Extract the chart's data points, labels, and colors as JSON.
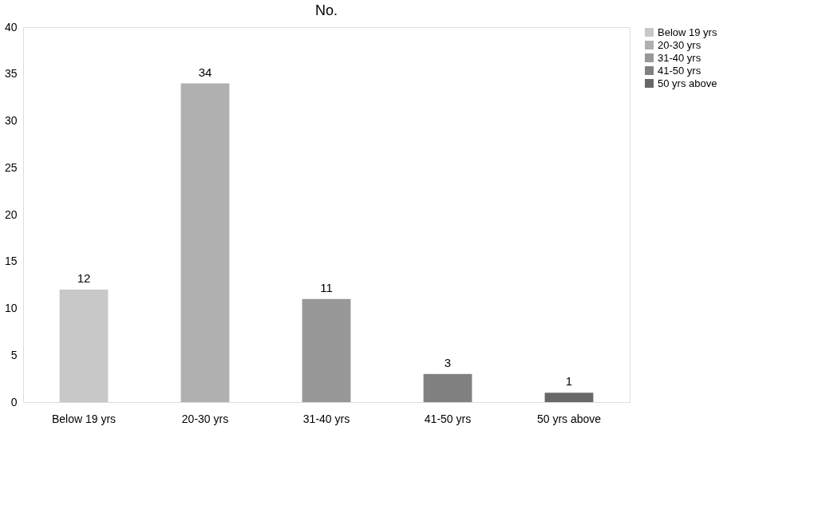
{
  "chart_data": {
    "type": "bar",
    "title": "No.",
    "categories": [
      "Below 19 yrs",
      "20-30 yrs",
      "31-40 yrs",
      "41-50 yrs",
      "50 yrs above"
    ],
    "series": [
      {
        "name": "Below 19 yrs",
        "color": "#c8c8c8",
        "values": [
          12,
          null,
          null,
          null,
          null
        ]
      },
      {
        "name": "20-30 yrs",
        "color": "#b0b0b0",
        "values": [
          null,
          34,
          null,
          null,
          null
        ]
      },
      {
        "name": "31-40 yrs",
        "color": "#989898",
        "values": [
          null,
          null,
          11,
          null,
          null
        ]
      },
      {
        "name": "41-50 yrs",
        "color": "#808080",
        "values": [
          null,
          null,
          null,
          3,
          null
        ]
      },
      {
        "name": "50 yrs above",
        "color": "#686868",
        "values": [
          null,
          null,
          null,
          null,
          1
        ]
      }
    ],
    "ylim": [
      0,
      40
    ],
    "yticks": [
      0,
      5,
      10,
      15,
      20,
      25,
      30,
      35,
      40
    ],
    "data_labels": true,
    "legend": "right",
    "grid": false
  }
}
